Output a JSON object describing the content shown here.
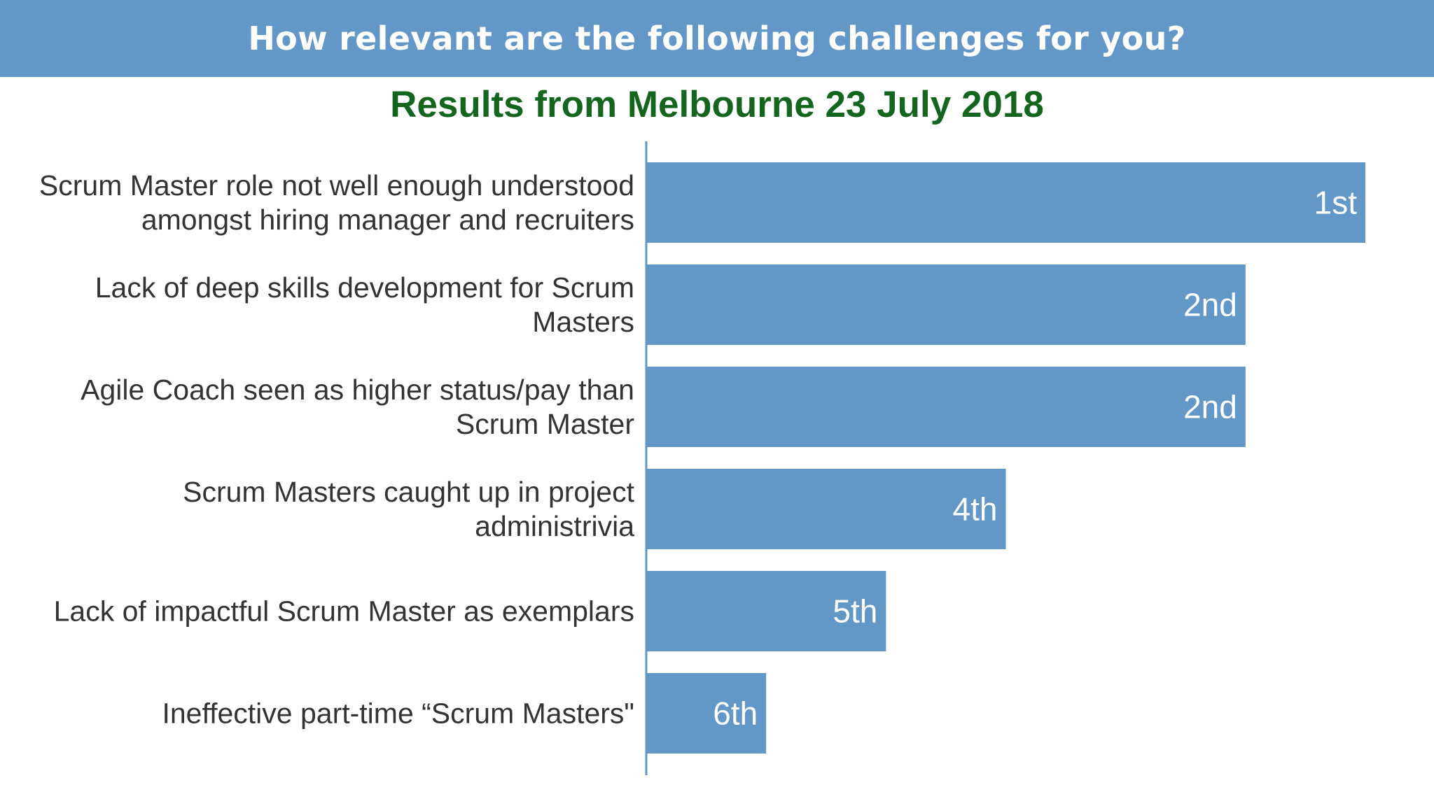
{
  "header": {
    "title": "How relevant are the following challenges for you?"
  },
  "subtitle": "Results from Melbourne 23 July 2018",
  "colors": {
    "banner": "#6297c8",
    "bar": "#6297c8",
    "subtitle": "#14661e",
    "label_text": "#333333",
    "bar_text": "#ffffff"
  },
  "chart_data": {
    "type": "bar",
    "orientation": "horizontal",
    "categories": [
      [
        "Scrum Master role not well enough understood",
        "amongst hiring manager and recruiters"
      ],
      [
        "Lack of deep skills development for Scrum",
        "Masters"
      ],
      [
        "Agile Coach seen as higher status/pay than",
        "Scrum Master"
      ],
      [
        "Scrum Masters caught up in project",
        "administrivia"
      ],
      [
        "Lack of impactful Scrum Master as exemplars"
      ],
      [
        "Ineffective part-time “Scrum Masters\""
      ]
    ],
    "values": [
      6,
      5,
      5,
      3,
      2,
      1
    ],
    "data_labels": [
      "1st",
      "2nd",
      "2nd",
      "4th",
      "5th",
      "6th"
    ],
    "xlim": [
      0,
      6
    ],
    "grid": false,
    "legend": "none",
    "xlabel": "",
    "ylabel": ""
  }
}
